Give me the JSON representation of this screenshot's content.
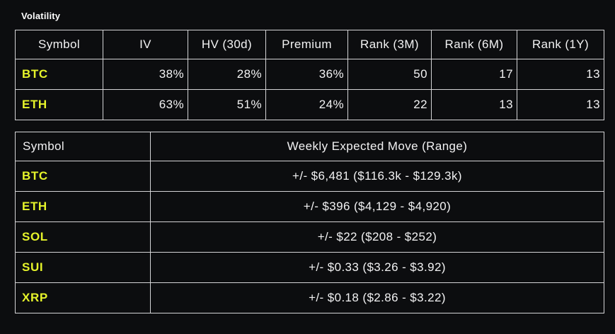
{
  "title": "Volatility",
  "colors": {
    "background": "#0c0d0f",
    "border": "#d4d4d6",
    "text": "#f2f2f3",
    "symbol_accent": "#e5f32a"
  },
  "volatility_table": {
    "headers": [
      "Symbol",
      "IV",
      "HV (30d)",
      "Premium",
      "Rank (3M)",
      "Rank (6M)",
      "Rank (1Y)"
    ],
    "rows": [
      [
        "BTC",
        "38%",
        "28%",
        "36%",
        "50",
        "17",
        "13"
      ],
      [
        "ETH",
        "63%",
        "51%",
        "24%",
        "22",
        "13",
        "13"
      ]
    ]
  },
  "expected_move_table": {
    "headers": [
      "Symbol",
      "Weekly Expected Move (Range)"
    ],
    "rows": [
      [
        "BTC",
        "+/- $6,481 ($116.3k - $129.3k)"
      ],
      [
        "ETH",
        "+/- $396 ($4,129 - $4,920)"
      ],
      [
        "SOL",
        "+/- $22 ($208 - $252)"
      ],
      [
        "SUI",
        "+/- $0.33 ($3.26 - $3.92)"
      ],
      [
        "XRP",
        "+/- $0.18 ($2.86 - $3.22)"
      ]
    ]
  }
}
